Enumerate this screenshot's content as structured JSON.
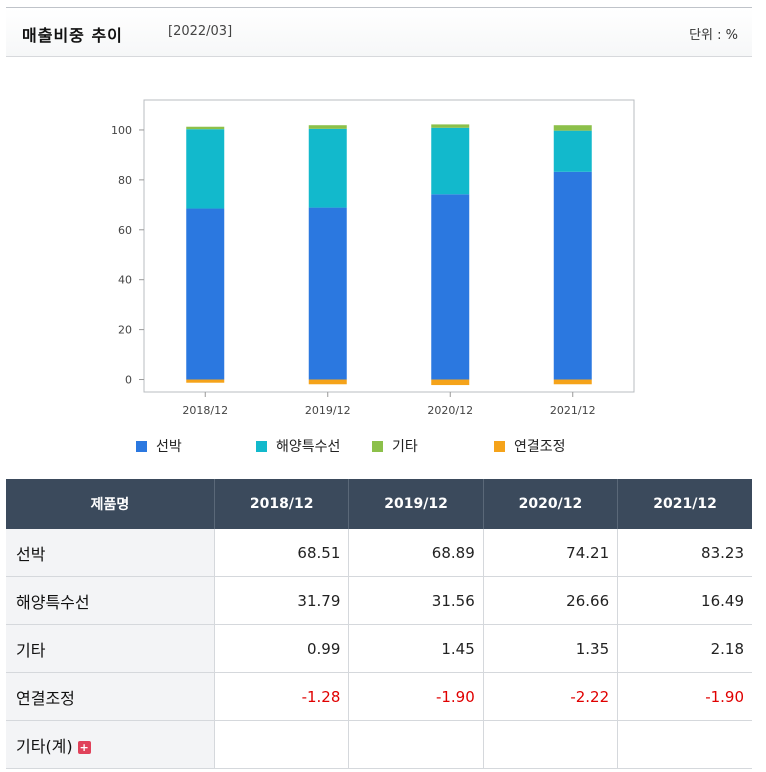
{
  "header": {
    "title": "매출비중 추이",
    "period": "[2022/03]",
    "unit": "단위 : %"
  },
  "colors": {
    "선박": "#2b78e0",
    "해양특수선": "#12b9cc",
    "기타": "#8cc04a",
    "연결조정": "#f5a31a"
  },
  "chart_data": {
    "type": "bar",
    "stacked": true,
    "categories": [
      "2018/12",
      "2019/12",
      "2020/12",
      "2021/12"
    ],
    "series": [
      {
        "name": "선박",
        "values": [
          68.51,
          68.89,
          74.21,
          83.23
        ]
      },
      {
        "name": "해양특수선",
        "values": [
          31.79,
          31.56,
          26.66,
          16.49
        ]
      },
      {
        "name": "기타",
        "values": [
          0.99,
          1.45,
          1.35,
          2.18
        ]
      },
      {
        "name": "연결조정",
        "values": [
          -1.28,
          -1.9,
          -2.22,
          -1.9
        ]
      }
    ],
    "yticks": [
      0,
      20,
      40,
      60,
      80,
      100
    ],
    "ylim": [
      -5,
      112
    ],
    "grid": false,
    "legend": "bottom"
  },
  "table": {
    "headers": [
      "제품명",
      "2018/12",
      "2019/12",
      "2020/12",
      "2021/12"
    ],
    "rows": [
      {
        "name": "선박",
        "values": [
          "68.51",
          "68.89",
          "74.21",
          "83.23"
        ]
      },
      {
        "name": "해양특수선",
        "values": [
          "31.79",
          "31.56",
          "26.66",
          "16.49"
        ]
      },
      {
        "name": "기타",
        "values": [
          "0.99",
          "1.45",
          "1.35",
          "2.18"
        ]
      },
      {
        "name": "연결조정",
        "values": [
          "-1.28",
          "-1.90",
          "-2.22",
          "-1.90"
        ]
      },
      {
        "name": "기타(계)",
        "values": [
          "",
          "",
          "",
          ""
        ],
        "expand_icon": "plus-icon"
      }
    ]
  }
}
